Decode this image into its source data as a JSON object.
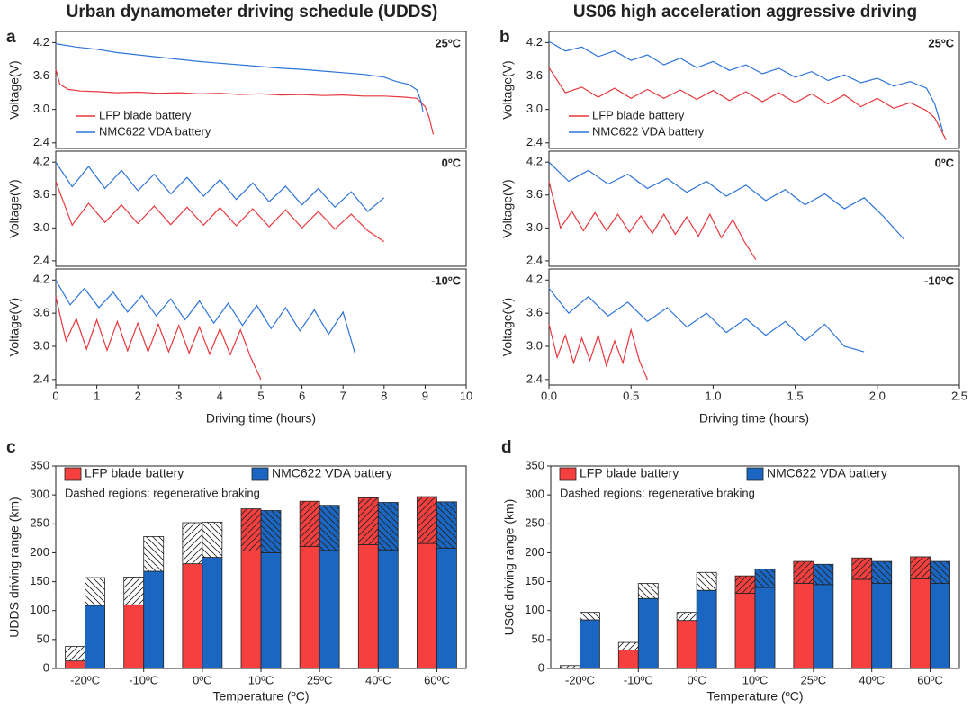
{
  "chart_data": [
    {
      "type": "line",
      "panel": "a",
      "title": "Urban dynamometer driving schedule (UDDS)",
      "annotation": "25ºC",
      "ylabel": "Voltage(V)",
      "xlim": [
        0,
        10
      ],
      "ylim": [
        2.3,
        4.4
      ],
      "yticks": [
        2.4,
        {
          "value": 3,
          "label": "3.0"
        },
        3.6,
        4.2
      ],
      "legend": "lower left",
      "series": [
        {
          "name": "LFP blade battery",
          "color": "#e8383d",
          "x": [
            0,
            0.1,
            0.3,
            0.6,
            1,
            1.5,
            2,
            2.5,
            3,
            3.5,
            4,
            4.5,
            5,
            5.5,
            6,
            6.5,
            7,
            7.5,
            8,
            8.5,
            8.8,
            9.0,
            9.1,
            9.2
          ],
          "values": [
            3.72,
            3.45,
            3.36,
            3.33,
            3.32,
            3.3,
            3.31,
            3.29,
            3.3,
            3.28,
            3.29,
            3.27,
            3.28,
            3.26,
            3.27,
            3.25,
            3.26,
            3.24,
            3.24,
            3.22,
            3.2,
            3.05,
            2.85,
            2.55
          ]
        },
        {
          "name": "NMC622 VDA battery",
          "color": "#2d74da",
          "x": [
            0,
            0.5,
            1,
            1.5,
            2,
            2.5,
            3,
            3.5,
            4,
            4.5,
            5,
            5.5,
            6,
            6.5,
            7,
            7.5,
            8,
            8.3,
            8.6,
            8.8,
            8.9,
            8.95
          ],
          "values": [
            4.18,
            4.12,
            4.08,
            4.02,
            3.98,
            3.94,
            3.9,
            3.86,
            3.83,
            3.8,
            3.77,
            3.74,
            3.72,
            3.69,
            3.66,
            3.63,
            3.58,
            3.5,
            3.45,
            3.35,
            3.15,
            2.95
          ]
        }
      ]
    },
    {
      "type": "line",
      "annotation": "0ºC",
      "ylabel": "Voltage(V)",
      "xlim": [
        0,
        10
      ],
      "ylim": [
        2.3,
        4.4
      ],
      "yticks": [
        2.4,
        {
          "value": 3,
          "label": "3.0"
        },
        3.6,
        4.2
      ],
      "series": [
        {
          "color": "#e8383d",
          "x": [
            0,
            0.4,
            0.8,
            1.2,
            1.6,
            2,
            2.4,
            2.8,
            3.2,
            3.6,
            4,
            4.4,
            4.8,
            5.2,
            5.6,
            6,
            6.4,
            6.8,
            7.2,
            7.6,
            8
          ],
          "values": [
            3.85,
            3.05,
            3.45,
            3.1,
            3.42,
            3.08,
            3.4,
            3.06,
            3.38,
            3.05,
            3.37,
            3.04,
            3.35,
            3.02,
            3.33,
            3.0,
            3.3,
            2.98,
            3.25,
            2.95,
            2.75
          ]
        },
        {
          "color": "#2d74da",
          "x": [
            0,
            0.4,
            0.8,
            1.2,
            1.6,
            2,
            2.4,
            2.8,
            3.2,
            3.6,
            4,
            4.4,
            4.8,
            5.2,
            5.6,
            6,
            6.4,
            6.8,
            7.2,
            7.6,
            8
          ],
          "values": [
            4.2,
            3.75,
            4.12,
            3.72,
            4.05,
            3.68,
            3.98,
            3.62,
            3.92,
            3.58,
            3.88,
            3.52,
            3.82,
            3.48,
            3.76,
            3.42,
            3.72,
            3.38,
            3.66,
            3.3,
            3.55
          ]
        }
      ]
    },
    {
      "type": "line",
      "annotation": "-10ºC",
      "ylabel": "Voltage(V)",
      "xlabel": "Driving time (hours)",
      "xlim": [
        0,
        10
      ],
      "ylim": [
        2.3,
        4.4
      ],
      "yticks": [
        2.4,
        {
          "value": 3,
          "label": "3.0"
        },
        3.6,
        4.2
      ],
      "xticks": [
        0,
        1,
        2,
        3,
        4,
        5,
        6,
        7,
        8,
        9,
        10
      ],
      "series": [
        {
          "color": "#e8383d",
          "x": [
            0,
            0.25,
            0.5,
            0.75,
            1,
            1.25,
            1.5,
            1.75,
            2,
            2.25,
            2.5,
            2.75,
            3,
            3.25,
            3.5,
            3.75,
            4,
            4.25,
            4.5,
            4.75,
            5
          ],
          "values": [
            3.9,
            3.1,
            3.5,
            2.95,
            3.48,
            2.93,
            3.45,
            2.92,
            3.42,
            2.9,
            3.4,
            2.9,
            3.38,
            2.88,
            3.35,
            2.86,
            3.32,
            2.85,
            3.3,
            2.8,
            2.4
          ]
        },
        {
          "color": "#2d74da",
          "x": [
            0,
            0.35,
            0.7,
            1.05,
            1.4,
            1.75,
            2.1,
            2.45,
            2.8,
            3.15,
            3.5,
            3.85,
            4.2,
            4.55,
            4.9,
            5.25,
            5.6,
            5.95,
            6.3,
            6.65,
            7.0,
            7.3
          ],
          "values": [
            4.2,
            3.75,
            4.05,
            3.7,
            3.98,
            3.62,
            3.92,
            3.55,
            3.86,
            3.48,
            3.82,
            3.42,
            3.78,
            3.38,
            3.74,
            3.32,
            3.7,
            3.28,
            3.66,
            3.22,
            3.62,
            2.85
          ]
        }
      ]
    },
    {
      "type": "line",
      "panel": "b",
      "title": "US06 high acceleration aggressive driving",
      "annotation": "25ºC",
      "ylabel": "Voltage(V)",
      "xlim": [
        0,
        2.5
      ],
      "ylim": [
        2.3,
        4.4
      ],
      "yticks": [
        2.4,
        {
          "value": 3,
          "label": "3.0"
        },
        3.6,
        4.2
      ],
      "legend": "lower left",
      "series": [
        {
          "name": "LFP blade battery",
          "color": "#e8383d",
          "x": [
            0,
            0.1,
            0.2,
            0.3,
            0.4,
            0.5,
            0.6,
            0.7,
            0.8,
            0.9,
            1.0,
            1.1,
            1.2,
            1.3,
            1.4,
            1.5,
            1.6,
            1.7,
            1.8,
            1.9,
            2.0,
            2.1,
            2.2,
            2.3,
            2.35,
            2.42
          ],
          "values": [
            3.75,
            3.3,
            3.4,
            3.22,
            3.38,
            3.2,
            3.36,
            3.2,
            3.35,
            3.18,
            3.34,
            3.16,
            3.32,
            3.14,
            3.3,
            3.12,
            3.28,
            3.1,
            3.26,
            3.05,
            3.2,
            3.02,
            3.12,
            2.98,
            2.85,
            2.45
          ]
        },
        {
          "name": "NMC622 VDA battery",
          "color": "#2d74da",
          "x": [
            0,
            0.1,
            0.2,
            0.3,
            0.4,
            0.5,
            0.6,
            0.7,
            0.8,
            0.9,
            1.0,
            1.1,
            1.2,
            1.3,
            1.4,
            1.5,
            1.6,
            1.7,
            1.8,
            1.9,
            2.0,
            2.1,
            2.2,
            2.3,
            2.35,
            2.4
          ],
          "values": [
            4.22,
            4.05,
            4.12,
            3.95,
            4.05,
            3.88,
            3.98,
            3.8,
            3.92,
            3.75,
            3.86,
            3.7,
            3.8,
            3.64,
            3.74,
            3.58,
            3.68,
            3.52,
            3.62,
            3.48,
            3.56,
            3.42,
            3.5,
            3.38,
            3.1,
            2.6
          ]
        }
      ]
    },
    {
      "type": "line",
      "annotation": "0ºC",
      "ylabel": "Voltage(V)",
      "xlim": [
        0,
        2.5
      ],
      "ylim": [
        2.3,
        4.4
      ],
      "yticks": [
        2.4,
        {
          "value": 3,
          "label": "3.0"
        },
        3.6,
        4.2
      ],
      "series": [
        {
          "color": "#e8383d",
          "x": [
            0,
            0.07,
            0.14,
            0.21,
            0.28,
            0.35,
            0.42,
            0.49,
            0.56,
            0.63,
            0.7,
            0.77,
            0.84,
            0.91,
            0.98,
            1.05,
            1.12,
            1.19,
            1.26
          ],
          "values": [
            3.85,
            3.0,
            3.3,
            2.95,
            3.28,
            2.95,
            3.25,
            2.92,
            3.22,
            2.9,
            3.25,
            2.88,
            3.2,
            2.85,
            3.25,
            2.82,
            3.15,
            2.75,
            2.42
          ]
        },
        {
          "color": "#2d74da",
          "x": [
            0,
            0.12,
            0.24,
            0.36,
            0.48,
            0.6,
            0.72,
            0.84,
            0.96,
            1.08,
            1.2,
            1.32,
            1.44,
            1.56,
            1.68,
            1.8,
            1.92,
            2.04,
            2.16
          ],
          "values": [
            4.2,
            3.85,
            4.05,
            3.8,
            3.98,
            3.72,
            3.9,
            3.65,
            3.85,
            3.58,
            3.78,
            3.5,
            3.7,
            3.42,
            3.62,
            3.35,
            3.55,
            3.2,
            2.8
          ]
        }
      ]
    },
    {
      "type": "line",
      "annotation": "-10ºC",
      "ylabel": "Voltage(V)",
      "xlabel": "Driving time (hours)",
      "xlim": [
        0,
        2.5
      ],
      "ylim": [
        2.3,
        4.4
      ],
      "yticks": [
        2.4,
        {
          "value": 3,
          "label": "3.0"
        },
        3.6,
        4.2
      ],
      "xticks": [
        {
          "value": 0,
          "label": "0.0"
        },
        0.5,
        {
          "value": 1,
          "label": "1.0"
        },
        1.5,
        {
          "value": 2,
          "label": "2.0"
        },
        2.5
      ],
      "series": [
        {
          "color": "#e8383d",
          "x": [
            0,
            0.05,
            0.1,
            0.15,
            0.2,
            0.25,
            0.3,
            0.35,
            0.4,
            0.45,
            0.5,
            0.55,
            0.6
          ],
          "values": [
            3.4,
            2.8,
            3.2,
            2.7,
            3.15,
            2.75,
            3.2,
            2.65,
            3.1,
            2.7,
            3.3,
            2.75,
            2.4
          ]
        },
        {
          "color": "#2d74da",
          "x": [
            0,
            0.12,
            0.24,
            0.36,
            0.48,
            0.6,
            0.72,
            0.84,
            0.96,
            1.08,
            1.2,
            1.32,
            1.44,
            1.56,
            1.68,
            1.8,
            1.92
          ],
          "values": [
            4.05,
            3.6,
            3.9,
            3.55,
            3.8,
            3.45,
            3.7,
            3.35,
            3.6,
            3.25,
            3.5,
            3.2,
            3.45,
            3.1,
            3.4,
            3.0,
            2.9
          ]
        }
      ]
    },
    {
      "type": "bar",
      "panel": "c",
      "ylabel": "UDDS driving range (km)",
      "xlabel": "Temperature (ºC)",
      "note": "Dashed regions: regenerative braking",
      "categories": [
        "-20ºC",
        "-10ºC",
        "0ºC",
        "10ºC",
        "25ºC",
        "40ºC",
        "60ºC"
      ],
      "ylim": [
        0,
        350
      ],
      "yticks": [
        0,
        50,
        100,
        150,
        200,
        250,
        300,
        350
      ],
      "legend": "upper left",
      "series": [
        {
          "name": "LFP blade battery",
          "color": "#f5403f",
          "values": [
            13,
            110,
            181,
            203,
            211,
            214,
            216
          ],
          "regen": [
            25,
            48,
            71,
            73,
            78,
            81,
            81
          ],
          "regen_colors": [
            "#ffffff",
            "#ffffff",
            "#ffffff",
            "#f5403f",
            "#f5403f",
            "#f5403f",
            "#f5403f"
          ]
        },
        {
          "name": "NMC622 VDA battery",
          "color": "#1a66c0",
          "values": [
            109,
            168,
            192,
            200,
            204,
            205,
            208
          ],
          "regen": [
            48,
            60,
            61,
            73,
            78,
            82,
            80
          ],
          "regen_colors": [
            "#ffffff",
            "#ffffff",
            "#ffffff",
            "#1a66c0",
            "#1a66c0",
            "#1a66c0",
            "#1a66c0"
          ]
        }
      ]
    },
    {
      "type": "bar",
      "panel": "d",
      "ylabel": "US06 driving range (km)",
      "xlabel": "Temperature (ºC)",
      "note": "Dashed regions: regenerative braking",
      "categories": [
        "-20ºC",
        "-10ºC",
        "0ºC",
        "10ºC",
        "25ºC",
        "40ºC",
        "60ºC"
      ],
      "ylim": [
        0,
        350
      ],
      "yticks": [
        0,
        50,
        100,
        150,
        200,
        250,
        300,
        350
      ],
      "legend": "upper left",
      "series": [
        {
          "name": "LFP blade battery",
          "color": "#f5403f",
          "values": [
            0,
            32,
            83,
            130,
            147,
            154,
            155
          ],
          "regen": [
            5,
            13,
            14,
            30,
            38,
            37,
            38
          ],
          "regen_colors": [
            "#ffffff",
            "#ffffff",
            "#ffffff",
            "#f5403f",
            "#f5403f",
            "#f5403f",
            "#f5403f"
          ]
        },
        {
          "name": "NMC622 VDA battery",
          "color": "#1a66c0",
          "values": [
            84,
            121,
            135,
            140,
            145,
            147,
            147
          ],
          "regen": [
            13,
            26,
            31,
            32,
            35,
            38,
            38
          ],
          "regen_colors": [
            "#ffffff",
            "#ffffff",
            "#ffffff",
            "#1a66c0",
            "#1a66c0",
            "#1a66c0",
            "#1a66c0"
          ]
        }
      ]
    }
  ]
}
